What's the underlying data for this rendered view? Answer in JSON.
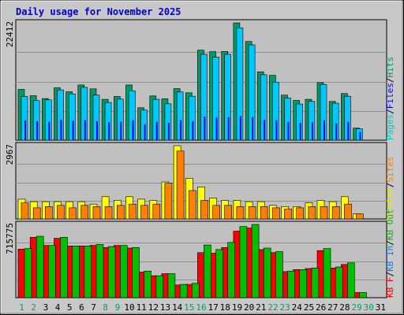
{
  "chart_data": {
    "type": "bar",
    "title": "Daily usage for November 2025",
    "days": [
      "1",
      "2",
      "3",
      "4",
      "5",
      "6",
      "7",
      "8",
      "9",
      "10",
      "11",
      "12",
      "13",
      "14",
      "15",
      "16",
      "17",
      "18",
      "19",
      "20",
      "21",
      "22",
      "23",
      "24",
      "25",
      "26",
      "27",
      "28",
      "29",
      "30",
      "31"
    ],
    "weekend_days": [
      "1",
      "2",
      "8",
      "9",
      "15",
      "16",
      "22",
      "23",
      "29",
      "30"
    ],
    "panels": [
      {
        "id": "pages-files-hits",
        "ymax_label": "22412",
        "ymax": 22412,
        "legend": [
          {
            "text": "Pages",
            "color": "#00c8c8"
          },
          {
            "text": "/",
            "color": "#000000"
          },
          {
            "text": "Files",
            "color": "#0000ff"
          },
          {
            "text": "/",
            "color": "#000000"
          },
          {
            "text": "Hits",
            "color": "#009a66"
          }
        ],
        "series": [
          {
            "name": "Hits",
            "color": "#009a66",
            "values": [
              9700,
              8500,
              7950,
              10000,
              9250,
              10550,
              9800,
              7800,
              8350,
              10550,
              6200,
              8450,
              7900,
              9850,
              9050,
              17200,
              16900,
              16950,
              22400,
              18850,
              13050,
              12400,
              8600,
              7600,
              7800,
              11000,
              7400,
              8900,
              2300,
              0,
              0
            ]
          },
          {
            "name": "Files",
            "color": "#00c8ff",
            "values": [
              8350,
              7550,
              7700,
              9600,
              8850,
              10100,
              8600,
              7200,
              7850,
              9400,
              5750,
              7800,
              6950,
              9200,
              8400,
              16400,
              15850,
              16400,
              21450,
              18200,
              12500,
              11100,
              8050,
              6900,
              7400,
              10650,
              7050,
              8400,
              2150,
              0,
              0
            ]
          },
          {
            "name": "Pages",
            "color": "#0000ff",
            "values": [
              3800,
              3600,
              3500,
              3900,
              3700,
              3800,
              3600,
              3400,
              3500,
              3800,
              3000,
              3500,
              3300,
              3800,
              3600,
              4500,
              4300,
              4400,
              4600,
              4400,
              3900,
              3800,
              3500,
              3300,
              3400,
              3800,
              3200,
              3500,
              1600,
              0,
              0
            ]
          }
        ]
      },
      {
        "id": "visits-sites",
        "ymax_label": "2967",
        "ymax": 2967,
        "legend": [
          {
            "text": "Visits",
            "color": "#e8e800"
          },
          {
            "text": "/",
            "color": "#000000"
          },
          {
            "text": "Sites",
            "color": "#ff8000"
          }
        ],
        "series": [
          {
            "name": "Visits",
            "color": "#ffff00",
            "values": [
              800,
              700,
              700,
              700,
              700,
              700,
              600,
              900,
              750,
              900,
              800,
              750,
              1500,
              2967,
              1650,
              1300,
              850,
              750,
              750,
              700,
              700,
              550,
              500,
              500,
              650,
              750,
              700,
              900,
              200,
              0,
              0
            ]
          },
          {
            "name": "Sites",
            "color": "#ff8000",
            "values": [
              650,
              450,
              500,
              550,
              450,
              550,
              500,
              500,
              550,
              600,
              550,
              600,
              1450,
              2750,
              1150,
              750,
              550,
              550,
              500,
              500,
              500,
              450,
              400,
              450,
              500,
              500,
              500,
              600,
              200,
              0,
              0
            ]
          }
        ]
      },
      {
        "id": "kb-in-out",
        "ymax_label": "715775",
        "ymax": 715775,
        "legend": [
          {
            "text": "KB F",
            "color": "#ff0000"
          },
          {
            "text": "/",
            "color": "#000000"
          },
          {
            "text": "KB In",
            "color": "#0080ff"
          },
          {
            "text": "/",
            "color": "#000000"
          },
          {
            "text": "KB Out",
            "color": "#00c000"
          }
        ],
        "series": [
          {
            "name": "KB F",
            "color": "#ff0000",
            "values": [
              475000,
              590000,
              510000,
              580000,
              505000,
              505000,
              510000,
              490000,
              510000,
              485000,
              250000,
              215000,
              235000,
              125000,
              130000,
              440000,
              435000,
              490000,
              650000,
              680000,
              470000,
              440000,
              255000,
              275000,
              285000,
              460000,
              290000,
              325000,
              50000,
              0,
              0
            ]
          },
          {
            "name": "KB In",
            "color": "#0080ff",
            "values": [
              0,
              0,
              0,
              0,
              0,
              0,
              0,
              0,
              0,
              0,
              0,
              0,
              0,
              0,
              0,
              0,
              0,
              0,
              0,
              0,
              0,
              0,
              0,
              0,
              0,
              0,
              0,
              0,
              0,
              0,
              0
            ]
          },
          {
            "name": "KB Out",
            "color": "#00c000",
            "values": [
              480000,
              600000,
              510000,
              590000,
              505000,
              505000,
              520000,
              500000,
              510000,
              490000,
              260000,
              215000,
              235000,
              130000,
              140000,
              515000,
              470000,
              540000,
              695000,
              715775,
              485000,
              450000,
              260000,
              275000,
              290000,
              480000,
              300000,
              340000,
              50000,
              0,
              0
            ]
          }
        ]
      }
    ]
  }
}
